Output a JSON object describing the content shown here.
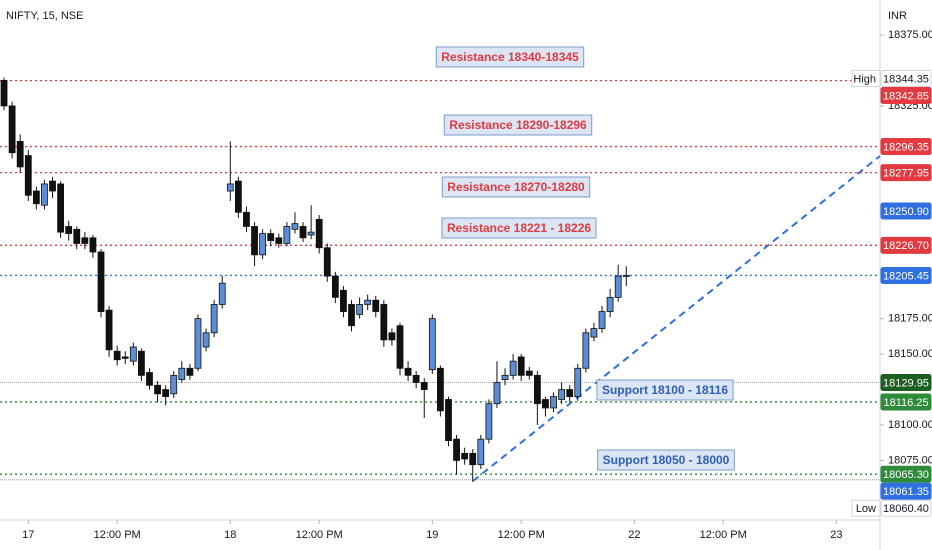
{
  "chart_data": {
    "type": "candlestick",
    "title": "NIFTY, 15, NSE",
    "currency": "INR",
    "up_color": "#5b8ed6",
    "down_color": "#111111",
    "x_labels": [
      {
        "value": 3,
        "label": "17"
      },
      {
        "value": 14,
        "label": "12:00 PM"
      },
      {
        "value": 28,
        "label": "18"
      },
      {
        "value": 39,
        "label": "12:00 PM"
      },
      {
        "value": 53,
        "label": "19"
      },
      {
        "value": 64,
        "label": "12:00 PM"
      },
      {
        "value": 78,
        "label": "22"
      },
      {
        "value": 89,
        "label": "12:00 PM"
      },
      {
        "value": 103,
        "label": "23"
      }
    ],
    "xlim": [
      -0.5,
      108.4
    ],
    "ylim": [
      18033,
      18399.7
    ],
    "yticks": [
      {
        "value": 18375,
        "label": "18375.00"
      },
      {
        "value": 18325,
        "label": "18325.00"
      },
      {
        "value": 18175,
        "label": "18175.00"
      },
      {
        "value": 18150,
        "label": "18150.00"
      },
      {
        "value": 18100,
        "label": "18100.00"
      },
      {
        "value": 18075,
        "label": "18075.00"
      }
    ],
    "open": [
      18343,
      18325,
      18300,
      18290,
      18265,
      18255,
      18272,
      18270,
      18240,
      18238,
      18232,
      18232,
      18222,
      18181,
      18152,
      18148,
      18145,
      18152,
      18137,
      18128,
      18125,
      18122,
      18132,
      18140,
      18140,
      18155,
      18165,
      18185,
      18265,
      18272,
      18250,
      18240,
      18220,
      18235,
      18232,
      18228,
      18238,
      18240,
      18234,
      18245,
      18225,
      18205,
      18195,
      18185,
      18178,
      18185,
      18188,
      18185,
      18165,
      18170,
      18140,
      18135,
      18130,
      18139,
      18140,
      18118,
      18090,
      18080,
      18080,
      18072,
      18090,
      18115,
      18132,
      18135,
      18148,
      18138,
      18135,
      18118,
      18112,
      18118,
      18125,
      18120,
      18140,
      18162,
      18168,
      18180,
      18190,
      18205
    ],
    "high": [
      18345,
      18328,
      18305,
      18294,
      18268,
      18273,
      18275,
      18272,
      18244,
      18240,
      18236,
      18234,
      18224,
      18184,
      18156,
      18152,
      18158,
      18154,
      18140,
      18131,
      18128,
      18138,
      18145,
      18143,
      18178,
      18168,
      18188,
      18205,
      18300,
      18275,
      18254,
      18243,
      18238,
      18238,
      18235,
      18243,
      18250,
      18243,
      18255,
      18248,
      18228,
      18208,
      18198,
      18188,
      18190,
      18192,
      18191,
      18188,
      18168,
      18172,
      18145,
      18138,
      18133,
      18178,
      18142,
      18120,
      18093,
      18084,
      18083,
      18093,
      18118,
      18145,
      18140,
      18150,
      18150,
      18141,
      18138,
      18120,
      18123,
      18130,
      18128,
      18143,
      18168,
      18172,
      18184,
      18196,
      18213,
      18212
    ],
    "low": [
      18322,
      18288,
      18278,
      18258,
      18252,
      18252,
      18260,
      18232,
      18230,
      18224,
      18224,
      18218,
      18176,
      18148,
      18142,
      18143,
      18142,
      18131,
      18125,
      18116,
      18114,
      18119,
      18130,
      18132,
      18138,
      18152,
      18162,
      18182,
      18258,
      18246,
      18236,
      18212,
      18217,
      18226,
      18225,
      18226,
      18235,
      18229,
      18231,
      18221,
      18201,
      18186,
      18176,
      18166,
      18175,
      18181,
      18176,
      18155,
      18156,
      18135,
      18131,
      18126,
      18105,
      18136,
      18106,
      18085,
      18065,
      18072,
      18060,
      18069,
      18087,
      18112,
      18128,
      18132,
      18131,
      18132,
      18100,
      18106,
      18109,
      18115,
      18116,
      18117,
      18137,
      18159,
      18165,
      18176,
      18187,
      18198
    ],
    "close": [
      18325,
      18292,
      18282,
      18262,
      18256,
      18270,
      18265,
      18236,
      18235,
      18228,
      18228,
      18222,
      18180,
      18153,
      18146,
      18147,
      18155,
      18135,
      18128,
      18122,
      18120,
      18135,
      18140,
      18135,
      18175,
      18165,
      18185,
      18200,
      18270,
      18250,
      18240,
      18220,
      18235,
      18230,
      18228,
      18240,
      18242,
      18232,
      18236,
      18225,
      18205,
      18190,
      18180,
      18170,
      18185,
      18188,
      18180,
      18160,
      18160,
      18140,
      18135,
      18130,
      18125,
      18175,
      18110,
      18089,
      18075,
      18076,
      18072,
      18090,
      18115,
      18130,
      18135,
      18145,
      18135,
      18135,
      18115,
      18112,
      18120,
      18125,
      18120,
      18140,
      18165,
      18168,
      18180,
      18190,
      18205,
      18205.45
    ],
    "price_lines": [
      {
        "value": 18344.35,
        "name": "High",
        "color": "#ffffff",
        "line": false
      },
      {
        "value": 18342.85,
        "color": "#e23a3f",
        "line": true
      },
      {
        "value": 18296.35,
        "color": "#e23a3f",
        "line": true
      },
      {
        "value": 18277.95,
        "color": "#e23a3f",
        "line": true
      },
      {
        "value": 18250.9,
        "label": "18250.90",
        "color": "#2f6fe0",
        "line": false
      },
      {
        "value": 18226.7,
        "label": "18226.70",
        "color": "#e23a3f",
        "line": true
      },
      {
        "value": 18205.45,
        "color": "#2f6fe0",
        "line": true
      },
      {
        "value": 18129.95,
        "color": "#1b5e20",
        "line": true
      },
      {
        "value": 18116.25,
        "color": "#2e8b3a",
        "line": true
      },
      {
        "value": 18065.3,
        "label": "18065.30",
        "color": "#2e8b3a",
        "line": true
      },
      {
        "value": 18061.35,
        "color": "#2f6fe0",
        "line": true
      },
      {
        "value": 18060.4,
        "label": "18060.40",
        "name": "Low",
        "color": "#ffffff",
        "line": false
      }
    ],
    "annotations": [
      "Resistance 18340-18345",
      "Resistance 18290-18296",
      "Resistance 18270-18280",
      "Resistance 18221 - 18226",
      "Support 18100 - 18116",
      "Support 18050 - 18000"
    ]
  }
}
